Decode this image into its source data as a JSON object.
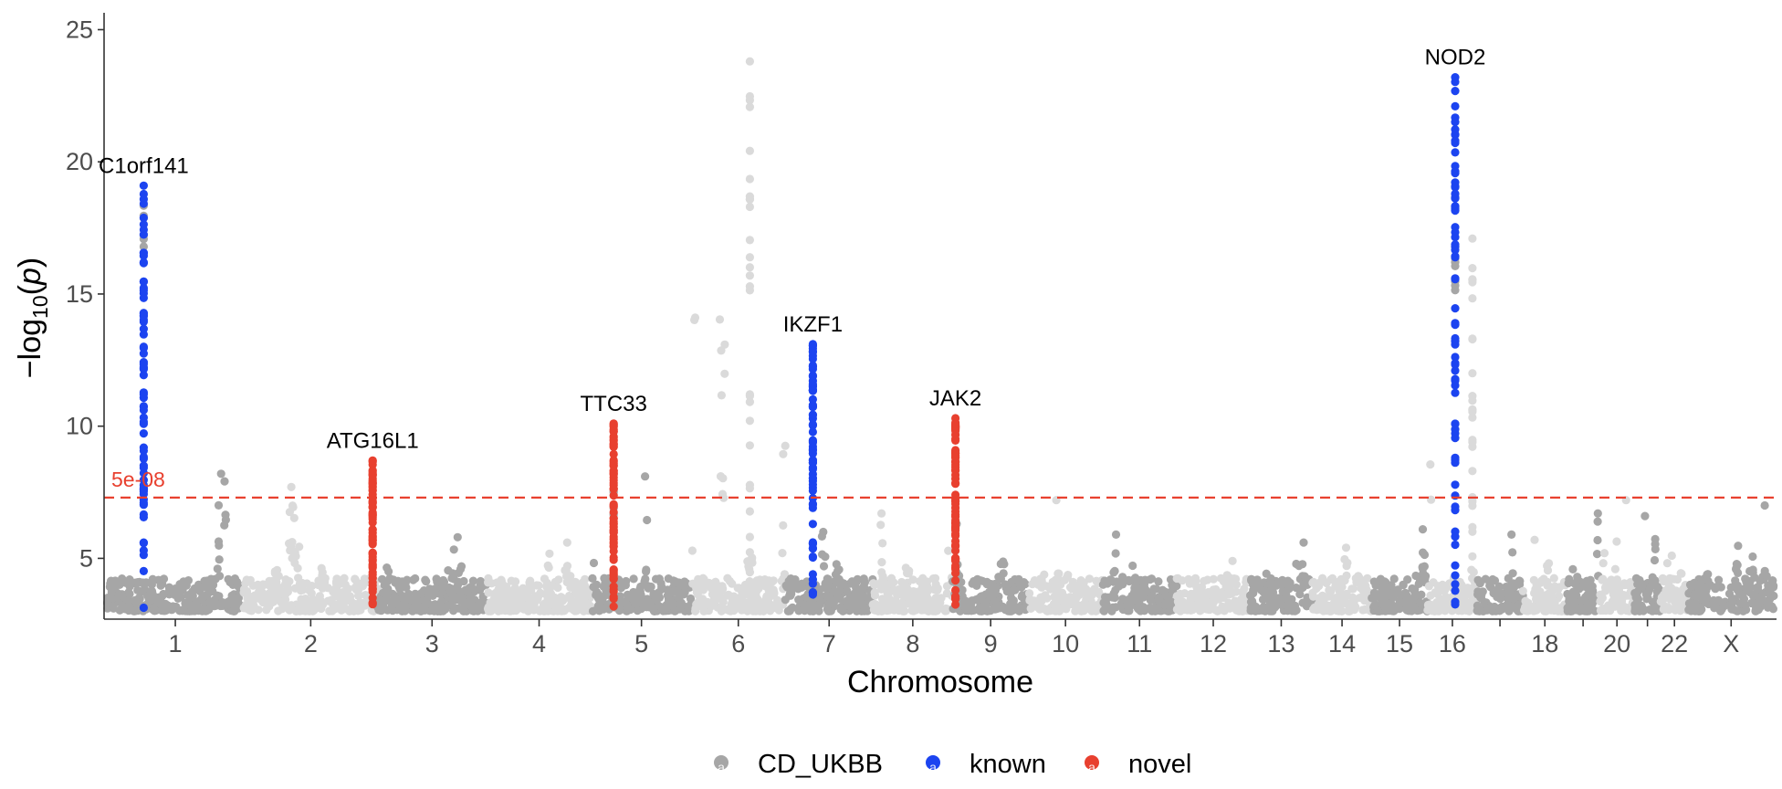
{
  "chart_data": {
    "type": "scatter",
    "subtype": "manhattan",
    "title": "",
    "xlabel": "Chromosome",
    "ylabel": "-log10(p)",
    "ylabel_parts": {
      "prefix": "−log",
      "subscript": "10",
      "open": "(",
      "variable": "p",
      "close": ")"
    },
    "ylim": [
      2.7,
      25.5
    ],
    "yticks": [
      5,
      10,
      15,
      20,
      25
    ],
    "y_floor": 3.0,
    "threshold": {
      "value": 7.3,
      "label": "5e-08",
      "color": "#e8402f",
      "style": "dashed"
    },
    "chromosomes": [
      {
        "label": "1",
        "size": 249,
        "max": 8.2,
        "fill": "dark",
        "labeled": true
      },
      {
        "label": "2",
        "size": 243,
        "max": 7.7,
        "fill": "light",
        "labeled": true
      },
      {
        "label": "3",
        "size": 198,
        "max": 5.8,
        "fill": "dark",
        "labeled": true
      },
      {
        "label": "4",
        "size": 191,
        "max": 5.6,
        "fill": "light",
        "labeled": true
      },
      {
        "label": "5",
        "size": 181,
        "max": 8.1,
        "fill": "dark",
        "labeled": true
      },
      {
        "label": "6",
        "size": 171,
        "max": 23.8,
        "fill": "light",
        "labeled": true
      },
      {
        "label": "7",
        "size": 159,
        "max": 6.0,
        "fill": "dark",
        "labeled": true
      },
      {
        "label": "8",
        "size": 145,
        "max": 6.7,
        "fill": "light",
        "labeled": true
      },
      {
        "label": "9",
        "size": 138,
        "max": 6.3,
        "fill": "dark",
        "labeled": true
      },
      {
        "label": "10",
        "size": 134,
        "max": 7.2,
        "fill": "light",
        "labeled": true
      },
      {
        "label": "11",
        "size": 135,
        "max": 5.9,
        "fill": "dark",
        "labeled": true
      },
      {
        "label": "12",
        "size": 133,
        "max": 4.9,
        "fill": "light",
        "labeled": true
      },
      {
        "label": "13",
        "size": 114,
        "max": 5.6,
        "fill": "dark",
        "labeled": true
      },
      {
        "label": "14",
        "size": 107,
        "max": 5.4,
        "fill": "light",
        "labeled": true
      },
      {
        "label": "15",
        "size": 102,
        "max": 6.1,
        "fill": "dark",
        "labeled": true
      },
      {
        "label": "16",
        "size": 90,
        "max": 17.1,
        "fill": "light",
        "labeled": true
      },
      {
        "label": "17",
        "size": 83,
        "max": 5.9,
        "fill": "dark",
        "labeled": false
      },
      {
        "label": "18",
        "size": 80,
        "max": 5.7,
        "fill": "light",
        "labeled": true
      },
      {
        "label": "19",
        "size": 59,
        "max": 6.7,
        "fill": "dark",
        "labeled": false
      },
      {
        "label": "20",
        "size": 64,
        "max": 7.2,
        "fill": "light",
        "labeled": true
      },
      {
        "label": "21",
        "size": 47,
        "max": 6.6,
        "fill": "dark",
        "labeled": false
      },
      {
        "label": "22",
        "size": 51,
        "max": 5.1,
        "fill": "light",
        "labeled": true
      },
      {
        "label": "X",
        "size": 155,
        "max": 7.0,
        "fill": "dark",
        "labeled": true
      }
    ],
    "base_color_dark": "#a6a6a6",
    "base_color_light": "#dadada",
    "highlight_colors": {
      "known": "#1c44f0",
      "novel": "#e8402f"
    },
    "loci": [
      {
        "gene": "C1orf141",
        "chromosome": "1",
        "position_mb": 67,
        "category": "known",
        "peak": 19.1,
        "gray_peak": 18.5
      },
      {
        "gene": "ATG16L1",
        "chromosome": "2",
        "position_mb": 234,
        "category": "novel",
        "peak": 8.7,
        "gray_peak": 0
      },
      {
        "gene": "TTC33",
        "chromosome": "5",
        "position_mb": 40,
        "category": "novel",
        "peak": 10.1,
        "gray_peak": 7.6
      },
      {
        "gene": "IKZF1",
        "chromosome": "7",
        "position_mb": 50,
        "category": "known",
        "peak": 13.1,
        "gray_peak": 0
      },
      {
        "gene": "JAK2",
        "chromosome": "9",
        "position_mb": 5,
        "category": "novel",
        "peak": 10.3,
        "gray_peak": 0
      },
      {
        "gene": "NOD2",
        "chromosome": "16",
        "position_mb": 50,
        "category": "known",
        "peak": 23.2,
        "gray_peak": 17.1
      }
    ],
    "legend": {
      "position": "bottom",
      "entries": [
        {
          "label": "CD_UKBB",
          "color": "#a6a6a6",
          "key_glyph": "a"
        },
        {
          "label": "known",
          "color": "#1c44f0",
          "key_glyph": "a"
        },
        {
          "label": "novel",
          "color": "#e8402f",
          "key_glyph": "a"
        }
      ]
    }
  }
}
